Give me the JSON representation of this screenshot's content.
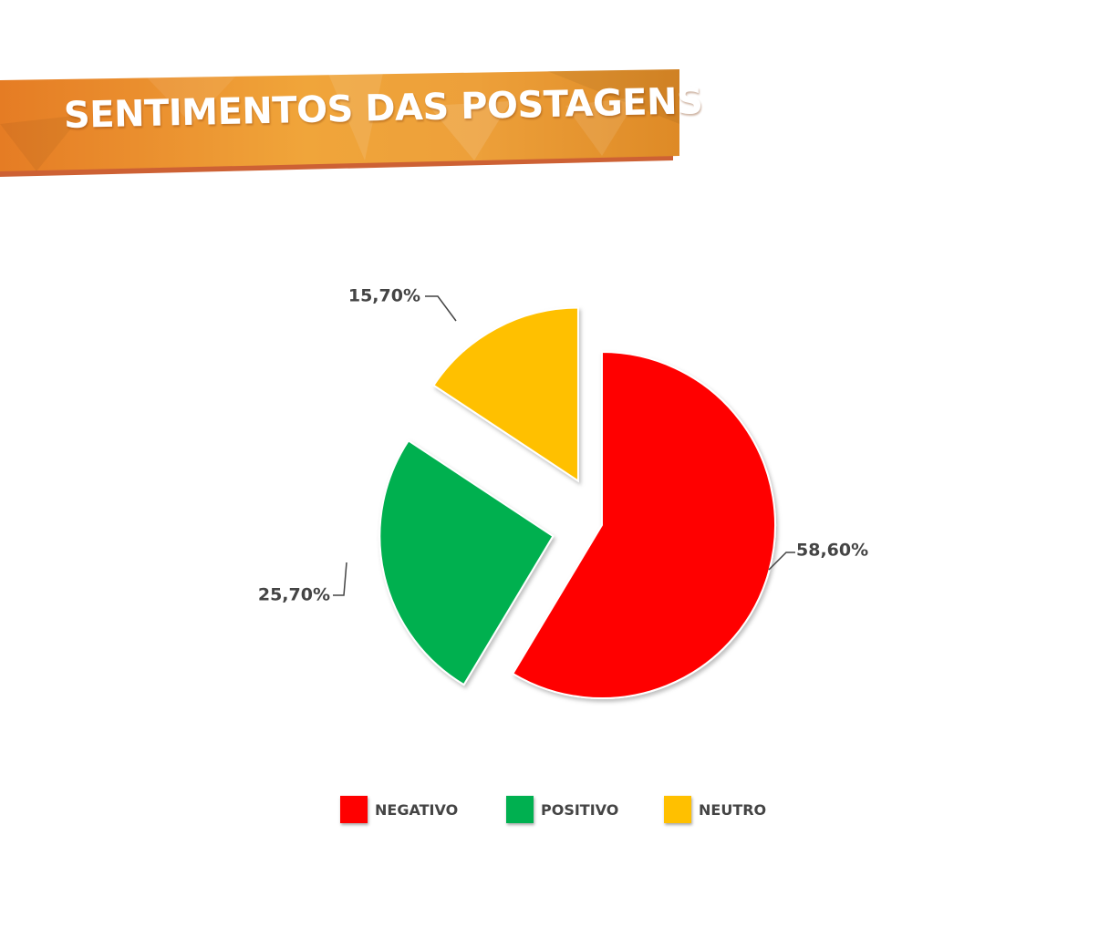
{
  "header": {
    "title": "SENTIMENTOS DAS POSTAGENS"
  },
  "colors": {
    "banner_light": "#f0a53a",
    "banner_dark": "#e07a22",
    "banner_shadow": "#c8501e",
    "negativo": "#ff0000",
    "positivo": "#00b050",
    "neutro": "#ffc000",
    "label_text": "#444444"
  },
  "chart_data": {
    "type": "pie",
    "categories": [
      "NEGATIVO",
      "POSITIVO",
      "NEUTRO"
    ],
    "values": [
      58.6,
      25.7,
      15.7
    ],
    "data_labels": [
      "58,60%",
      "25,70%",
      "15,70%"
    ],
    "exploded": [
      false,
      true,
      true
    ],
    "legend_position": "bottom"
  },
  "legend": {
    "items": [
      {
        "label": "NEGATIVO",
        "color": "#ff0000"
      },
      {
        "label": "POSITIVO",
        "color": "#00b050"
      },
      {
        "label": "NEUTRO",
        "color": "#ffc000"
      }
    ]
  }
}
